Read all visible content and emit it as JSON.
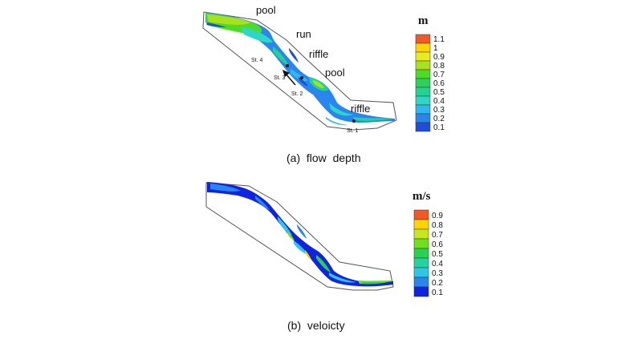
{
  "panels": [
    {
      "caption": "(a)  flow  depth",
      "legend_title": "m",
      "legend_labels": [
        "1.1",
        "1",
        "0.9",
        "0.8",
        "0.7",
        "0.6",
        "0.5",
        "0.4",
        "0.3",
        "0.2",
        "0.1"
      ],
      "legend_colors": [
        "#f05a28",
        "#ffd400",
        "#e6ec1e",
        "#a8e21e",
        "#4cdc28",
        "#2ad25a",
        "#24d296",
        "#2ed6c6",
        "#30b8ee",
        "#2a86ee",
        "#1f4cd8"
      ],
      "reach_labels": [
        "pool",
        "run",
        "riffle",
        "pool",
        "riffle"
      ],
      "stations": [
        "St. 4",
        "St. 3",
        "St. 2",
        "St. 1"
      ]
    },
    {
      "caption": "(b)  veloicty",
      "legend_title": "m/s",
      "legend_labels": [
        "0.9",
        "0.8",
        "0.7",
        "0.6",
        "0.5",
        "0.4",
        "0.3",
        "0.2",
        "0.1"
      ],
      "legend_colors": [
        "#f05a28",
        "#ffd400",
        "#c8e61e",
        "#6ee01e",
        "#28d250",
        "#26d2a0",
        "#30c6e8",
        "#2a86ee",
        "#1024e0"
      ]
    }
  ]
}
